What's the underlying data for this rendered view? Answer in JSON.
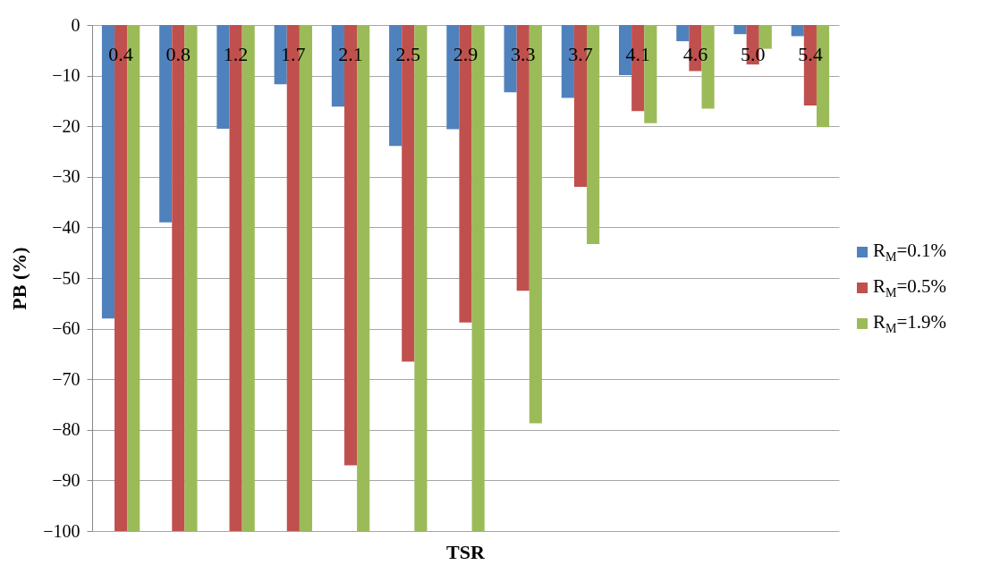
{
  "chart_data": {
    "type": "bar",
    "xlabel": "TSR",
    "ylabel": "PB (%)",
    "categories": [
      "0.4",
      "0.8",
      "1.2",
      "1.7",
      "2.1",
      "2.5",
      "2.9",
      "3.3",
      "3.7",
      "4.1",
      "4.6",
      "5.0",
      "5.4"
    ],
    "series": [
      {
        "name": "R$_{M}$=0.1%",
        "color": "#4f81bd",
        "values": [
          -58,
          -39,
          -20.5,
          -11.7,
          -16.1,
          -23.9,
          -20.6,
          -13.3,
          -14.4,
          -9.9,
          -3.2,
          -1.8,
          -2.2
        ]
      },
      {
        "name": "R$_{M}$=0.5%",
        "color": "#c0504d",
        "values": [
          -100,
          -100,
          -100,
          -100,
          -87,
          -66.5,
          -58.8,
          -52.5,
          -32,
          -17,
          -9.1,
          -7.8,
          -15.9
        ]
      },
      {
        "name": "R$_{M}$=1.9%",
        "color": "#9bbb59",
        "values": [
          -100,
          -100,
          -100,
          -100,
          -100,
          -100,
          -100,
          -78.7,
          -43.3,
          -19.4,
          -16.5,
          -4.7,
          -20.2
        ]
      }
    ],
    "ylim": [
      -100,
      0
    ],
    "yticks": [
      -100,
      -90,
      -80,
      -70,
      -60,
      -50,
      -40,
      -30,
      -20,
      -10,
      0
    ],
    "grid": "y",
    "legend": "right"
  }
}
